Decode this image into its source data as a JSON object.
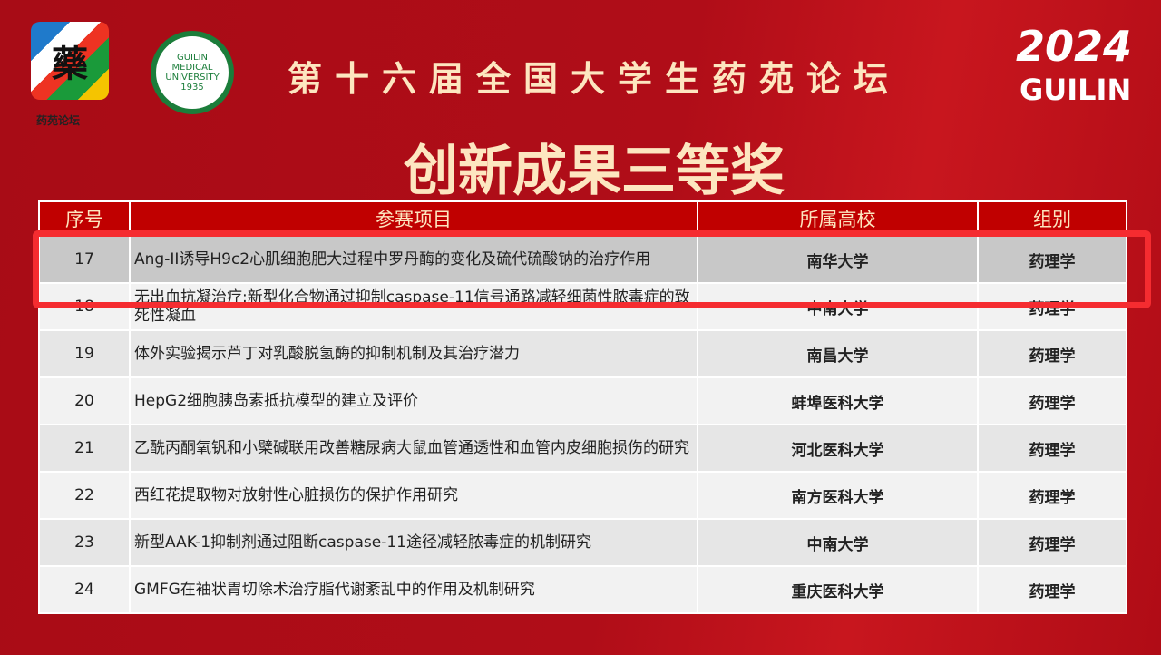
{
  "header": {
    "title": "第十六届全国大学生药苑论坛",
    "subtitle": "创新成果三等奖",
    "logo_left_text": "藥",
    "logo_left_caption": "药苑论坛",
    "logo_right_text": "GUILIN MEDICAL UNIVERSITY 1935",
    "year": "2024",
    "city": "GUILIN"
  },
  "table": {
    "columns": [
      "序号",
      "参赛项目",
      "所属高校",
      "组别"
    ],
    "rows": [
      {
        "no": "17",
        "project": "Ang-II诱导H9c2心肌细胞肥大过程中罗丹酶的变化及硫代硫酸钠的治疗作用",
        "school": "南华大学",
        "group": "药理学"
      },
      {
        "no": "18",
        "project": "无出血抗凝治疗:新型化合物通过抑制caspase-11信号通路减轻细菌性脓毒症的致死性凝血",
        "school": "中南大学",
        "group": "药理学"
      },
      {
        "no": "19",
        "project": "体外实验揭示芦丁对乳酸脱氢酶的抑制机制及其治疗潜力",
        "school": "南昌大学",
        "group": "药理学"
      },
      {
        "no": "20",
        "project": "HepG2细胞胰岛素抵抗模型的建立及评价",
        "school": "蚌埠医科大学",
        "group": "药理学"
      },
      {
        "no": "21",
        "project": "乙酰丙酮氧钒和小檗碱联用改善糖尿病大鼠血管通透性和血管内皮细胞损伤的研究",
        "school": "河北医科大学",
        "group": "药理学"
      },
      {
        "no": "22",
        "project": "西红花提取物对放射性心脏损伤的保护作用研究",
        "school": "南方医科大学",
        "group": "药理学"
      },
      {
        "no": "23",
        "project": "新型AAK-1抑制剂通过阻断caspase-11途径减轻脓毒症的机制研究",
        "school": "中南大学",
        "group": "药理学"
      },
      {
        "no": "24",
        "project": "GMFG在袖状胃切除术治疗脂代谢紊乱中的作用及机制研究",
        "school": "重庆医科大学",
        "group": "药理学"
      }
    ],
    "highlighted_row": "17"
  },
  "colors": {
    "background": "#b00d18",
    "header_cell": "#c00000",
    "highlight_border": "#f52c30",
    "title_text": "#fde6c0"
  }
}
